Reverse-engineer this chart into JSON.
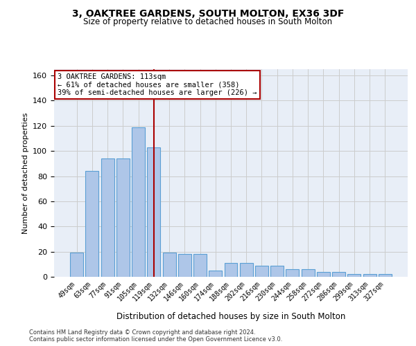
{
  "title1": "3, OAKTREE GARDENS, SOUTH MOLTON, EX36 3DF",
  "title2": "Size of property relative to detached houses in South Molton",
  "xlabel": "Distribution of detached houses by size in South Molton",
  "ylabel": "Number of detached properties",
  "categories": [
    "49sqm",
    "63sqm",
    "77sqm",
    "91sqm",
    "105sqm",
    "119sqm",
    "132sqm",
    "146sqm",
    "160sqm",
    "174sqm",
    "188sqm",
    "202sqm",
    "216sqm",
    "230sqm",
    "244sqm",
    "258sqm",
    "272sqm",
    "286sqm",
    "299sqm",
    "313sqm",
    "327sqm"
  ],
  "values": [
    19,
    84,
    94,
    94,
    119,
    103,
    19,
    18,
    18,
    5,
    11,
    11,
    9,
    9,
    6,
    6,
    4,
    4,
    2,
    2,
    2
  ],
  "bar_color": "#aec6e8",
  "bar_edge_color": "#5a9fd4",
  "vline_color": "#aa0000",
  "annotation_text": "3 OAKTREE GARDENS: 113sqm\n← 61% of detached houses are smaller (358)\n39% of semi-detached houses are larger (226) →",
  "annotation_box_color": "#ffffff",
  "annotation_box_edge_color": "#aa0000",
  "ylim": [
    0,
    165
  ],
  "yticks": [
    0,
    20,
    40,
    60,
    80,
    100,
    120,
    140,
    160
  ],
  "footer1": "Contains HM Land Registry data © Crown copyright and database right 2024.",
  "footer2": "Contains public sector information licensed under the Open Government Licence v3.0.",
  "grid_color": "#cccccc",
  "background_color": "#e8eef7",
  "vline_pos": 5.0
}
